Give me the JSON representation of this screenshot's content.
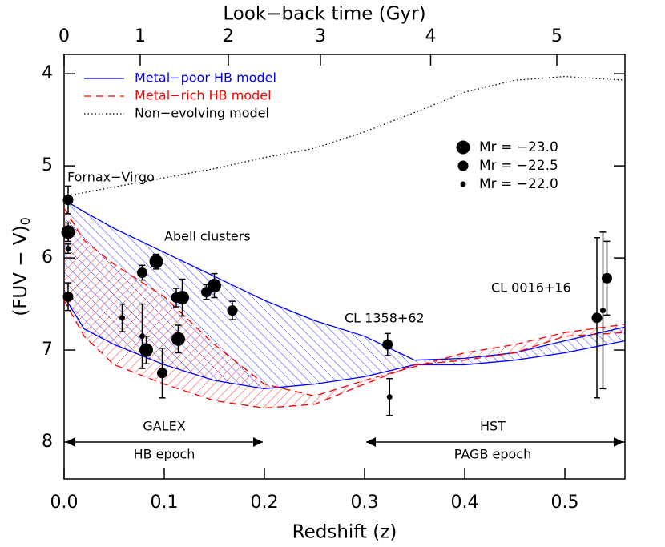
{
  "chart_data": {
    "type": "scatter",
    "xlabel": "Redshift (z)",
    "ylabel": "(FUV − V)",
    "ylabel_subscript": "0",
    "x2label": "Look−back time (Gyr)",
    "xlim": [
      0,
      0.56
    ],
    "xticks": [
      {
        "value": 0,
        "label": "0.0"
      },
      0.1,
      0.2,
      0.3,
      0.4,
      0.5
    ],
    "x2ticks": [
      {
        "value": 0,
        "label": "0"
      },
      {
        "value": 0.076,
        "label": "1"
      },
      {
        "value": 0.164,
        "label": "2"
      },
      {
        "value": 0.256,
        "label": "3"
      },
      {
        "value": 0.366,
        "label": "4"
      },
      {
        "value": 0.492,
        "label": "5"
      }
    ],
    "ylim": [
      8.4,
      3.79
    ],
    "yticks": [
      4,
      5,
      6,
      7,
      8
    ],
    "models": [
      {
        "name": "Metal−poor HB model",
        "color": "#0000ff",
        "dash": "solid",
        "x": [
          0,
          0.02,
          0.05,
          0.1,
          0.15,
          0.2,
          0.25,
          0.3,
          0.35,
          0.4,
          0.45,
          0.5,
          0.56
        ],
        "values": [
          5.37,
          5.5,
          5.68,
          5.94,
          6.2,
          6.46,
          6.68,
          6.85,
          7.11,
          7.09,
          7.03,
          6.9,
          6.75
        ],
        "values_other": [
          6.42,
          6.77,
          6.94,
          7.16,
          7.33,
          7.42,
          7.37,
          7.29,
          7.16,
          7.16,
          7.11,
          7.03,
          6.9
        ]
      },
      {
        "name": "Metal−rich HB model",
        "color": "#ff0000",
        "dash": "dashed",
        "x": [
          0,
          0.02,
          0.05,
          0.1,
          0.15,
          0.2,
          0.25,
          0.3,
          0.35,
          0.4,
          0.45,
          0.5,
          0.56
        ],
        "values": [
          5.46,
          5.81,
          6.07,
          6.42,
          6.94,
          7.37,
          7.5,
          7.33,
          7.18,
          7.03,
          6.94,
          6.81,
          6.72
        ],
        "values_other": [
          6.46,
          6.85,
          7.16,
          7.37,
          7.55,
          7.63,
          7.59,
          7.37,
          7.16,
          7.11,
          7.03,
          6.85,
          6.81
        ]
      },
      {
        "name": "Non−evolving model",
        "color": "#000000",
        "dash": "dotted",
        "x": [
          0,
          0.02,
          0.05,
          0.1,
          0.15,
          0.2,
          0.25,
          0.3,
          0.35,
          0.4,
          0.45,
          0.5,
          0.56
        ],
        "values": [
          5.33,
          5.29,
          5.23,
          5.13,
          5.03,
          4.91,
          4.81,
          4.63,
          4.42,
          4.2,
          4.07,
          4.03,
          4.07
        ]
      }
    ],
    "series": [
      {
        "name": "Mr = −23.0",
        "color": "#000000",
        "x": [
          0.004,
          0.082,
          0.092,
          0.118,
          0.114,
          0.15
        ],
        "values": [
          5.72,
          7.0,
          6.04,
          6.43,
          6.88,
          6.3
        ],
        "errors": [
          0.1,
          0.15,
          0.08,
          0.2,
          0.15,
          0.13
        ]
      },
      {
        "name": "Mr = −22.5",
        "color": "#000000",
        "x": [
          0.004,
          0.004,
          0.078,
          0.098,
          0.112,
          0.142,
          0.168,
          0.323,
          0.532,
          0.542
        ],
        "values": [
          5.37,
          6.42,
          6.16,
          7.25,
          6.43,
          6.37,
          6.57,
          6.94,
          6.65,
          6.22
        ],
        "errors": [
          0.15,
          0.15,
          0.08,
          0.27,
          0.1,
          0.08,
          0.1,
          0.12,
          0.87,
          0.4
        ]
      },
      {
        "name": "Mr = −22.0",
        "color": "#000000",
        "x": [
          0.004,
          0.078,
          0.058,
          0.325,
          0.538
        ],
        "values": [
          5.9,
          6.85,
          6.65,
          7.51,
          6.57
        ],
        "errors": [
          0.05,
          0.35,
          0.15,
          0.2,
          0.85
        ]
      }
    ],
    "annotations": [
      "Fornax−Virgo",
      "Abell clusters",
      "CL 1358+62",
      "CL 0016+16",
      "GALEX",
      "HB epoch",
      "HST",
      "PAGB epoch"
    ]
  }
}
